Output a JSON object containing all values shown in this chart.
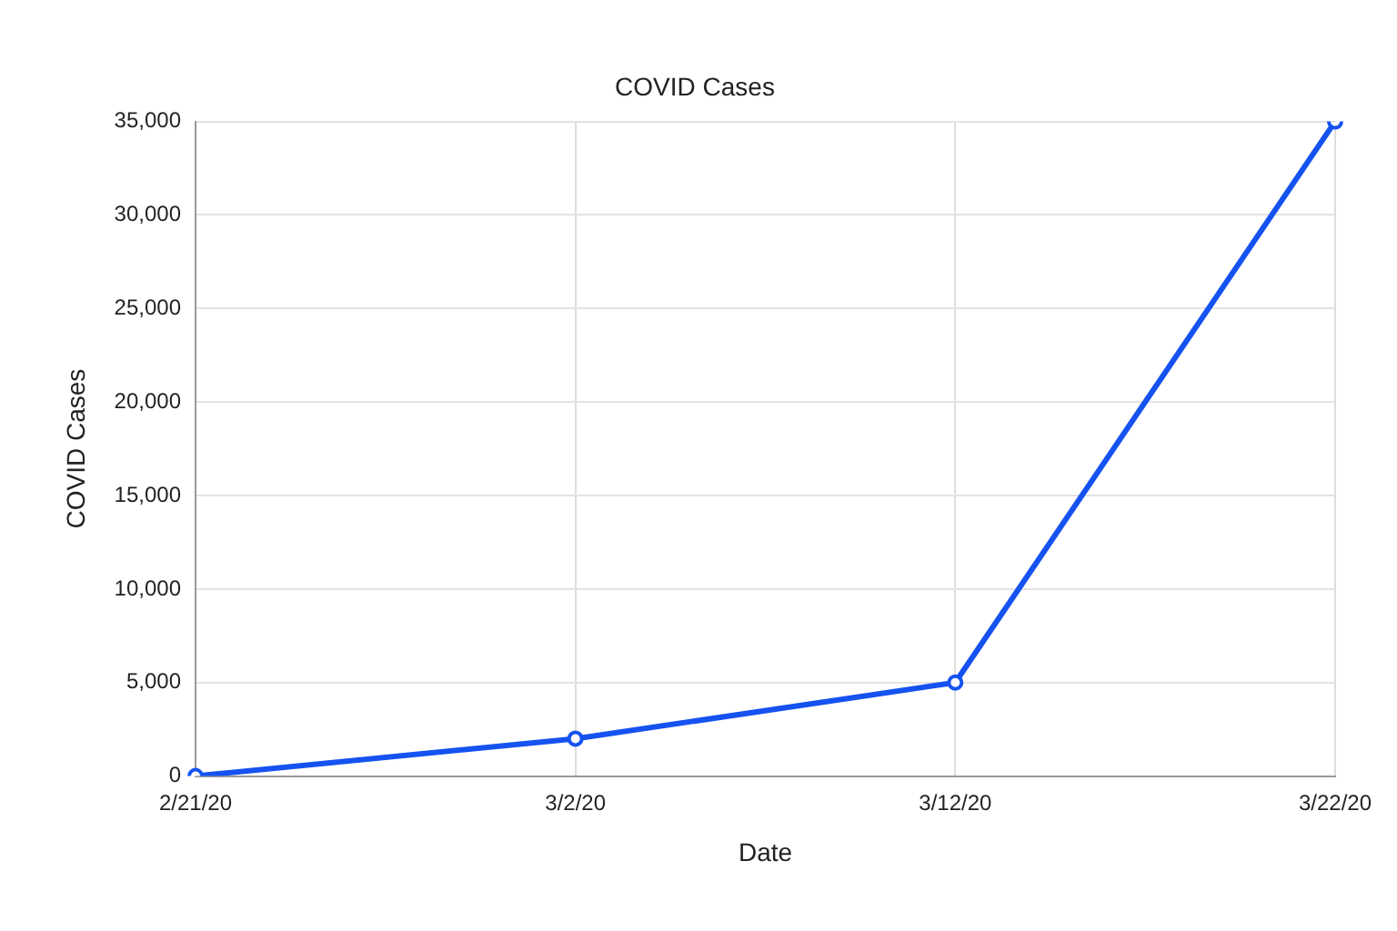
{
  "chart_data": {
    "type": "line",
    "title": "COVID Cases",
    "xlabel": "Date",
    "ylabel": "COVID Cases",
    "categories": [
      "2/21/20",
      "3/2/20",
      "3/12/20",
      "3/22/20"
    ],
    "series": [
      {
        "color": "#1552f0",
        "values": [
          0,
          2000,
          5000,
          35000
        ]
      }
    ],
    "ylim": [
      0,
      35000
    ],
    "yticks": [
      {
        "value": 0,
        "label": "0"
      },
      {
        "value": 5000,
        "label": "5,000"
      },
      {
        "value": 10000,
        "label": "10,000"
      },
      {
        "value": 15000,
        "label": "15,000"
      },
      {
        "value": 20000,
        "label": "20,000"
      },
      {
        "value": 25000,
        "label": "25,000"
      },
      {
        "value": 30000,
        "label": "30,000"
      },
      {
        "value": 35000,
        "label": "35,000"
      }
    ],
    "grid": true,
    "legend": false,
    "marker": "circle",
    "line_style": "solid"
  }
}
